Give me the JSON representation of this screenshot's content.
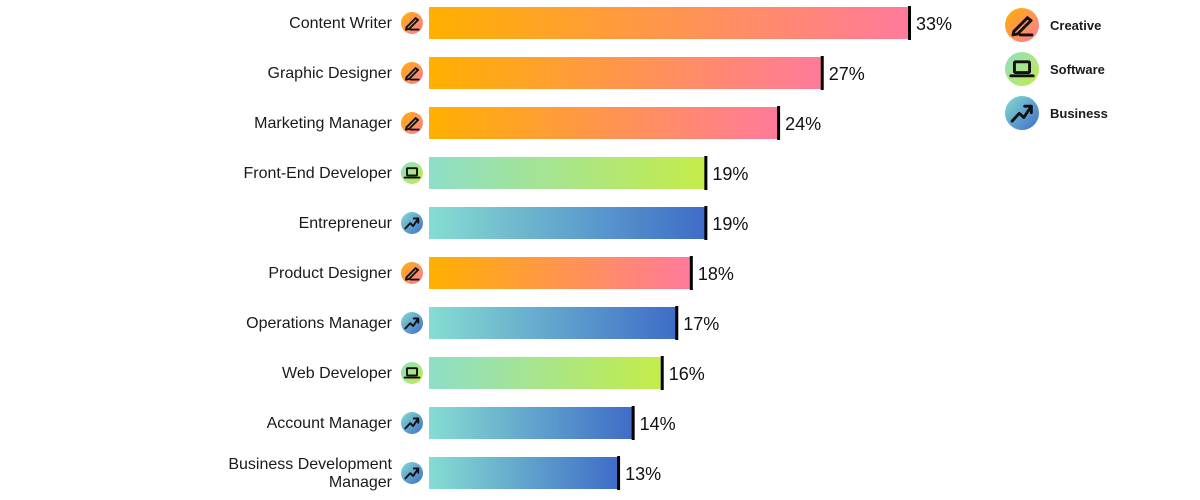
{
  "chart_data": {
    "type": "bar",
    "orientation": "horizontal",
    "categories": [
      "Content Writer",
      "Graphic Designer",
      "Marketing Manager",
      "Front-End Developer",
      "Entrepreneur",
      "Product Designer",
      "Operations Manager",
      "Web Developer",
      "Account Manager",
      "Business Development Manager"
    ],
    "category_lines": [
      [
        "Content Writer"
      ],
      [
        "Graphic Designer"
      ],
      [
        "Marketing Manager"
      ],
      [
        "Front-End Developer"
      ],
      [
        "Entrepreneur"
      ],
      [
        "Product Designer"
      ],
      [
        "Operations Manager"
      ],
      [
        "Web Developer"
      ],
      [
        "Account Manager"
      ],
      [
        "Business Development",
        "Manager"
      ]
    ],
    "values": [
      33,
      27,
      24,
      19,
      19,
      18,
      17,
      16,
      14,
      13
    ],
    "value_labels": [
      "33%",
      "27%",
      "24%",
      "19%",
      "19%",
      "18%",
      "17%",
      "16%",
      "14%",
      "13%"
    ],
    "groups": [
      "creative",
      "creative",
      "creative",
      "software",
      "business",
      "creative",
      "business",
      "software",
      "business",
      "business"
    ],
    "unit": "%",
    "xlim": [
      0,
      33
    ],
    "grid": false,
    "legend_position": "top-right",
    "title": "",
    "xlabel": "",
    "ylabel": ""
  },
  "legend": [
    {
      "key": "creative",
      "label": "Creative",
      "icon": "pencil-icon"
    },
    {
      "key": "software",
      "label": "Software",
      "icon": "laptop-icon"
    },
    {
      "key": "business",
      "label": "Business",
      "icon": "trend-up-icon"
    }
  ],
  "colors": {
    "creative": [
      "#FFB000",
      "#FF7A9B"
    ],
    "software": [
      "#8EDEC8",
      "#C4EC48"
    ],
    "business": [
      "#86DDD2",
      "#3E6CC8"
    ],
    "value_marker": "#000000",
    "text": "#1a1a1a"
  }
}
